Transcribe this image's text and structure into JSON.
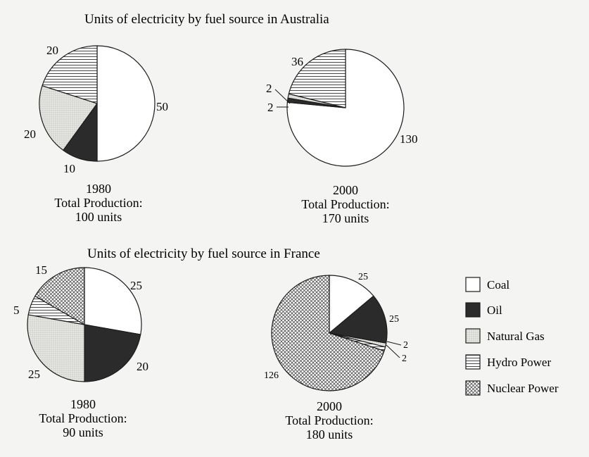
{
  "colors": {
    "coal": "#ffffff",
    "oil": "#2b2b2b",
    "natural_gas": "#dededa",
    "hydro": "#ffffff",
    "nuclear": "#d4d4d0",
    "outline": "#1c1c1c"
  },
  "legend": [
    {
      "key": "coal",
      "label": "Coal"
    },
    {
      "key": "oil",
      "label": "Oil"
    },
    {
      "key": "natural_gas",
      "label": "Natural Gas"
    },
    {
      "key": "hydro",
      "label": "Hydro Power"
    },
    {
      "key": "nuclear",
      "label": "Nuclear Power"
    }
  ],
  "chart_data": [
    {
      "type": "pie",
      "title": "Units of electricity by fuel source in Australia",
      "caption": [
        "1980",
        "Total Production:",
        "100 units"
      ],
      "categories": [
        "Coal",
        "Oil",
        "Natural Gas",
        "Hydro Power"
      ],
      "values": [
        50,
        10,
        20,
        20
      ]
    },
    {
      "type": "pie",
      "title": "",
      "caption": [
        "2000",
        "Total Production:",
        "170 units"
      ],
      "categories": [
        "Coal",
        "Oil",
        "Natural Gas",
        "Hydro Power"
      ],
      "values": [
        130,
        2,
        2,
        36
      ]
    },
    {
      "type": "pie",
      "title": "Units of electricity by fuel source in France",
      "caption": [
        "1980",
        "Total Production:",
        "90 units"
      ],
      "categories": [
        "Coal",
        "Oil",
        "Natural Gas",
        "Hydro Power",
        "Nuclear Power"
      ],
      "values": [
        25,
        20,
        25,
        5,
        15
      ]
    },
    {
      "type": "pie",
      "title": "",
      "caption": [
        "2000",
        "Total Production:",
        "180 units"
      ],
      "categories": [
        "Coal",
        "Oil",
        "Natural Gas",
        "Hydro Power",
        "Nuclear Power"
      ],
      "values": [
        25,
        25,
        2,
        2,
        126
      ]
    }
  ]
}
